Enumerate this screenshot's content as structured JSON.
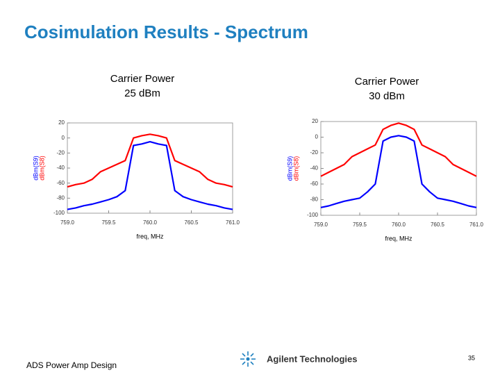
{
  "title": "Cosimulation Results - Spectrum",
  "footer": "ADS Power Amp Design",
  "logo": "Agilent Technologies",
  "page_number": "35",
  "chart_data": [
    {
      "type": "line",
      "title": "Carrier Power",
      "subtitle": "25 dBm",
      "xlabel": "freq, MHz",
      "x": [
        759.0,
        759.1,
        759.2,
        759.3,
        759.4,
        759.5,
        759.6,
        759.7,
        759.8,
        759.9,
        760.0,
        760.1,
        760.2,
        760.3,
        760.4,
        760.5,
        760.6,
        760.7,
        760.8,
        760.9,
        761.0
      ],
      "series": [
        {
          "name": "dBm(S8)",
          "color": "#ff0000",
          "values": [
            -65,
            -62,
            -60,
            -55,
            -45,
            -40,
            -35,
            -30,
            0,
            3,
            5,
            3,
            0,
            -30,
            -35,
            -40,
            -45,
            -55,
            -60,
            -62,
            -65
          ]
        },
        {
          "name": "dBm(S9)",
          "color": "#0000ff",
          "values": [
            -95,
            -93,
            -90,
            -88,
            -85,
            -82,
            -78,
            -70,
            -10,
            -8,
            -5,
            -8,
            -10,
            -70,
            -78,
            -82,
            -85,
            -88,
            -90,
            -93,
            -95
          ]
        }
      ],
      "xlim": [
        759.0,
        761.0
      ],
      "xticks": [
        {
          "value": 759.0,
          "label": "759.0"
        },
        759.5,
        {
          "value": 760.0,
          "label": "760.0"
        },
        760.5,
        {
          "value": 761.0,
          "label": "761.0"
        }
      ],
      "ylim": [
        -100,
        20
      ],
      "yticks": [
        20,
        0,
        -20,
        -40,
        -60,
        -80,
        -100
      ],
      "grid": false
    },
    {
      "type": "line",
      "title": "Carrier Power",
      "subtitle": "30 dBm",
      "xlabel": "freq, MHz",
      "x": [
        759.0,
        759.1,
        759.2,
        759.3,
        759.4,
        759.5,
        759.6,
        759.7,
        759.8,
        759.9,
        760.0,
        760.1,
        760.2,
        760.3,
        760.4,
        760.5,
        760.6,
        760.7,
        760.8,
        760.9,
        761.0
      ],
      "series": [
        {
          "name": "dBm(S8)",
          "color": "#ff0000",
          "values": [
            -50,
            -45,
            -40,
            -35,
            -25,
            -20,
            -15,
            -10,
            10,
            15,
            18,
            15,
            10,
            -10,
            -15,
            -20,
            -25,
            -35,
            -40,
            -45,
            -50
          ]
        },
        {
          "name": "dBm(S9)",
          "color": "#0000ff",
          "values": [
            -90,
            -88,
            -85,
            -82,
            -80,
            -78,
            -70,
            -60,
            -5,
            0,
            2,
            0,
            -5,
            -60,
            -70,
            -78,
            -80,
            -82,
            -85,
            -88,
            -90
          ]
        }
      ],
      "xlim": [
        759.0,
        761.0
      ],
      "xticks": [
        {
          "value": 759.0,
          "label": "759.0"
        },
        759.5,
        {
          "value": 760.0,
          "label": "760.0"
        },
        760.5,
        {
          "value": 761.0,
          "label": "761.0"
        }
      ],
      "ylim": [
        -100,
        20
      ],
      "yticks": [
        20,
        0,
        -20,
        -40,
        -60,
        -80,
        -100
      ],
      "grid": false
    }
  ]
}
